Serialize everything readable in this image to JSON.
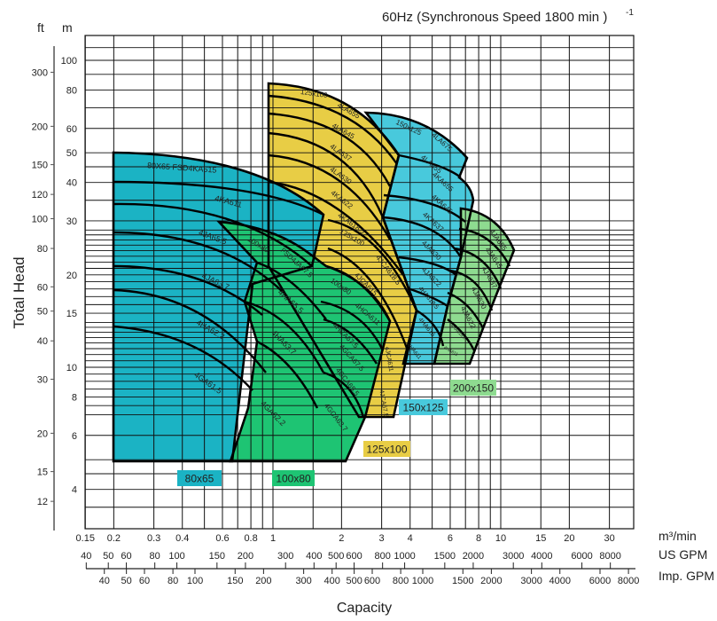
{
  "chart_data": {
    "type": "area",
    "title": "60Hz (Synchronous Speed 1800 min  )",
    "title_superscript": "-1",
    "xlabel": "Capacity",
    "ylabel": "Total Head",
    "y_units": {
      "left": "ft",
      "right": "m"
    },
    "x_units": {
      "primary": "m³/min",
      "secondary": "US GPM",
      "tertiary": "Imp. GPM"
    },
    "x_scale": "log",
    "y_scale": "log",
    "xlim_m3min": [
      0.15,
      35
    ],
    "ylim_m": [
      3,
      120
    ],
    "grid": true,
    "x_ticks_m3min": [
      "0.15",
      "0.2",
      "0.3",
      "0.4",
      "0.6",
      "0.8",
      "1",
      "2",
      "3",
      "4",
      "6",
      "8",
      "10",
      "15",
      "20",
      "30"
    ],
    "x_ticks_usgpm": [
      "40",
      "50",
      "60",
      "80",
      "100",
      "150",
      "200",
      "300",
      "400",
      "500",
      "600",
      "800",
      "1000",
      "1500",
      "2000",
      "3000",
      "4000",
      "6000",
      "8000"
    ],
    "x_ticks_impgpm": [
      "40",
      "50",
      "60",
      "80",
      "100",
      "150",
      "200",
      "300",
      "400",
      "500",
      "600",
      "800",
      "1000",
      "1500",
      "2000",
      "3000",
      "4000",
      "6000",
      "8000"
    ],
    "y_ticks_m": [
      "100",
      "80",
      "60",
      "50",
      "40",
      "30",
      "20",
      "15",
      "10",
      "8",
      "6",
      "4"
    ],
    "y_ticks_ft": [
      "300",
      "200",
      "150",
      "120",
      "100",
      "80",
      "60",
      "50",
      "40",
      "30",
      "20",
      "15",
      "12"
    ],
    "series": [
      {
        "name": "80x65",
        "color": "#1bb3c4",
        "curves": [
          "80X65 FSD4KA615",
          "4KA611",
          "4JA65.5",
          "4JA63.7",
          "4HA62.2",
          "4GA61.5"
        ]
      },
      {
        "name": "100x80",
        "color": "#1ec473",
        "curves": [
          "100x80",
          "FSD4JA67.5",
          "4HA65.5",
          "4HA63.7",
          "4GA62.2",
          "100x80",
          "4HCA611",
          "4HCA67.5",
          "4GCA67.5",
          "4GCA65.5",
          "4GCA63.7"
        ]
      },
      {
        "name": "125x100",
        "color": "#e8cd45",
        "curves": [
          "125x100",
          "4LA655",
          "4LA645",
          "4LA637",
          "4LA630",
          "4KA622",
          "4KA618.5",
          "125x100",
          "4JCA618.5",
          "4JCA615",
          "4JCA611",
          "4JCA67.5"
        ]
      },
      {
        "name": "150x125",
        "color": "#48c9dc",
        "curves": [
          "150x125",
          "4LA675",
          "4LA655",
          "4KA655",
          "4KA645",
          "4KA637",
          "4JA630",
          "4JA622",
          "4HA618.5",
          "4HA615",
          "4HA611"
        ]
      },
      {
        "name": "200x150",
        "color": "#8edb90",
        "curves": [
          "4JA655",
          "4JA645",
          "4JA637",
          "4JA630",
          "4JA622",
          "4HA618.5",
          "4HA611"
        ]
      }
    ]
  }
}
